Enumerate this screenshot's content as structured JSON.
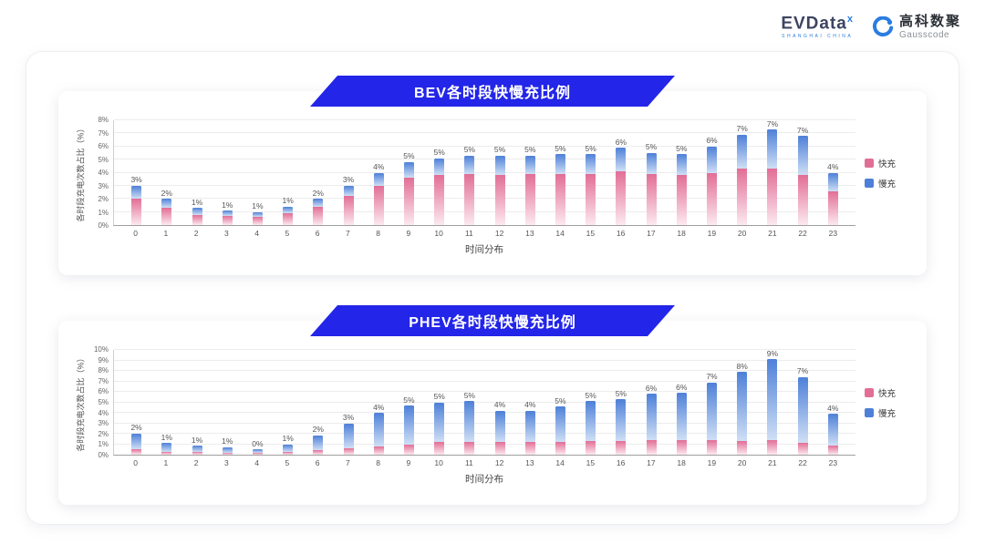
{
  "header": {
    "evdata": {
      "name": "EVData",
      "sup": "x",
      "subtitle": "SHANGHAI CHINA"
    },
    "gausscode": {
      "name": "高科数聚",
      "subtitle": "Gausscode"
    }
  },
  "colors": {
    "fast": "#e26e96",
    "slow": "#4e80d8",
    "banner": "#2325e8"
  },
  "chart_data": [
    {
      "type": "bar",
      "stacked": true,
      "title": "BEV各时段快慢充比例",
      "xlabel": "时间分布",
      "ylabel": "各时段充电次数占比（%）",
      "ylim": [
        0,
        8
      ],
      "ytick_step": 1,
      "grid": true,
      "legend_position": "right",
      "categories": [
        "0",
        "1",
        "2",
        "3",
        "4",
        "5",
        "6",
        "7",
        "8",
        "9",
        "10",
        "11",
        "12",
        "13",
        "14",
        "15",
        "16",
        "17",
        "18",
        "19",
        "20",
        "21",
        "22",
        "23"
      ],
      "bar_labels": [
        "3%",
        "2%",
        "1%",
        "1%",
        "1%",
        "1%",
        "2%",
        "3%",
        "4%",
        "5%",
        "5%",
        "5%",
        "5%",
        "5%",
        "5%",
        "5%",
        "6%",
        "5%",
        "5%",
        "6%",
        "7%",
        "7%",
        "7%",
        "4%"
      ],
      "series": [
        {
          "name": "快充",
          "color": "#e26e96",
          "values": [
            2.0,
            1.3,
            0.8,
            0.7,
            0.6,
            0.9,
            1.4,
            2.2,
            3.0,
            3.6,
            3.8,
            3.9,
            3.8,
            3.9,
            3.9,
            3.9,
            4.1,
            3.9,
            3.8,
            4.0,
            4.3,
            4.3,
            3.8,
            2.6
          ]
        },
        {
          "name": "慢充",
          "color": "#4e80d8",
          "values": [
            1.0,
            0.7,
            0.5,
            0.4,
            0.4,
            0.5,
            0.6,
            0.8,
            1.0,
            1.2,
            1.3,
            1.4,
            1.5,
            1.4,
            1.5,
            1.5,
            1.8,
            1.6,
            1.6,
            2.0,
            2.6,
            3.0,
            3.0,
            1.4
          ]
        }
      ]
    },
    {
      "type": "bar",
      "stacked": true,
      "title": "PHEV各时段快慢充比例",
      "xlabel": "时间分布",
      "ylabel": "各时段充电次数占比（%）",
      "ylim": [
        0,
        10
      ],
      "ytick_step": 1,
      "grid": true,
      "legend_position": "right",
      "categories": [
        "0",
        "1",
        "2",
        "3",
        "4",
        "5",
        "6",
        "7",
        "8",
        "9",
        "10",
        "11",
        "12",
        "13",
        "14",
        "15",
        "16",
        "17",
        "18",
        "19",
        "20",
        "21",
        "22",
        "23"
      ],
      "bar_labels": [
        "2%",
        "1%",
        "1%",
        "1%",
        "0%",
        "1%",
        "2%",
        "3%",
        "4%",
        "5%",
        "5%",
        "5%",
        "4%",
        "4%",
        "5%",
        "5%",
        "5%",
        "6%",
        "6%",
        "7%",
        "8%",
        "9%",
        "7%",
        "4%"
      ],
      "series": [
        {
          "name": "快充",
          "color": "#e26e96",
          "values": [
            0.5,
            0.3,
            0.25,
            0.2,
            0.15,
            0.3,
            0.45,
            0.6,
            0.8,
            1.0,
            1.2,
            1.2,
            1.2,
            1.2,
            1.2,
            1.3,
            1.3,
            1.4,
            1.4,
            1.4,
            1.3,
            1.4,
            1.1,
            0.9
          ]
        },
        {
          "name": "慢充",
          "color": "#4e80d8",
          "values": [
            1.5,
            0.8,
            0.6,
            0.5,
            0.35,
            0.7,
            1.4,
            2.4,
            3.2,
            3.7,
            3.8,
            3.9,
            3.0,
            3.0,
            3.4,
            3.8,
            4.0,
            4.4,
            4.5,
            5.5,
            6.6,
            7.7,
            6.3,
            3.0
          ]
        }
      ]
    }
  ]
}
